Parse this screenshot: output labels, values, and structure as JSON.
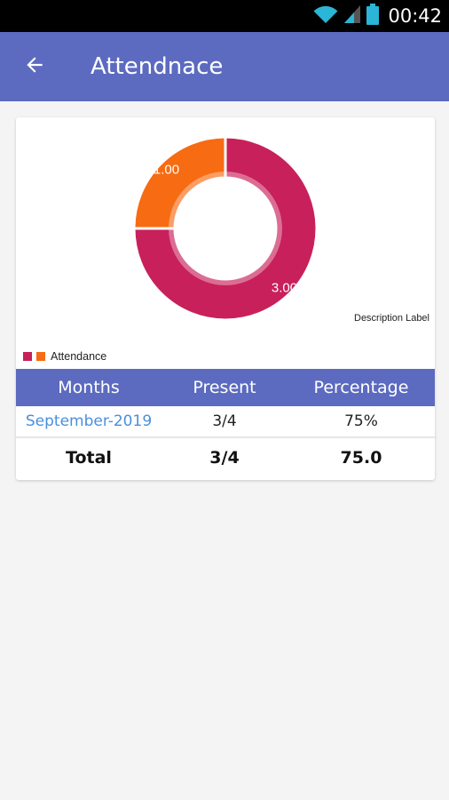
{
  "status_bar": {
    "time": "00:42"
  },
  "header": {
    "title": "Attendnace"
  },
  "colors": {
    "primary": "#5c6bc0",
    "slice_present": "#c8205a",
    "slice_absent": "#f76b12",
    "link": "#4a8fdd"
  },
  "icons": {
    "back": "arrow-back-icon",
    "wifi": "wifi-icon",
    "signal": "signal-icon",
    "battery": "battery-icon"
  },
  "chart_data": {
    "type": "pie",
    "slices": [
      {
        "value": 3.0,
        "label": "3.00",
        "color": "#c8205a"
      },
      {
        "value": 1.0,
        "label": "1.00",
        "color": "#f76b12"
      }
    ],
    "legend": [
      {
        "label": "Attendance",
        "colors": [
          "#c8205a",
          "#f76b12"
        ]
      }
    ],
    "description": "Description Label"
  },
  "table": {
    "headers": [
      "Months",
      "Present",
      "Percentage"
    ],
    "rows": [
      {
        "month": "September-2019",
        "present": "3/4",
        "percentage": "75%"
      }
    ],
    "total": {
      "label": "Total",
      "present": "3/4",
      "percentage": "75.0"
    }
  }
}
